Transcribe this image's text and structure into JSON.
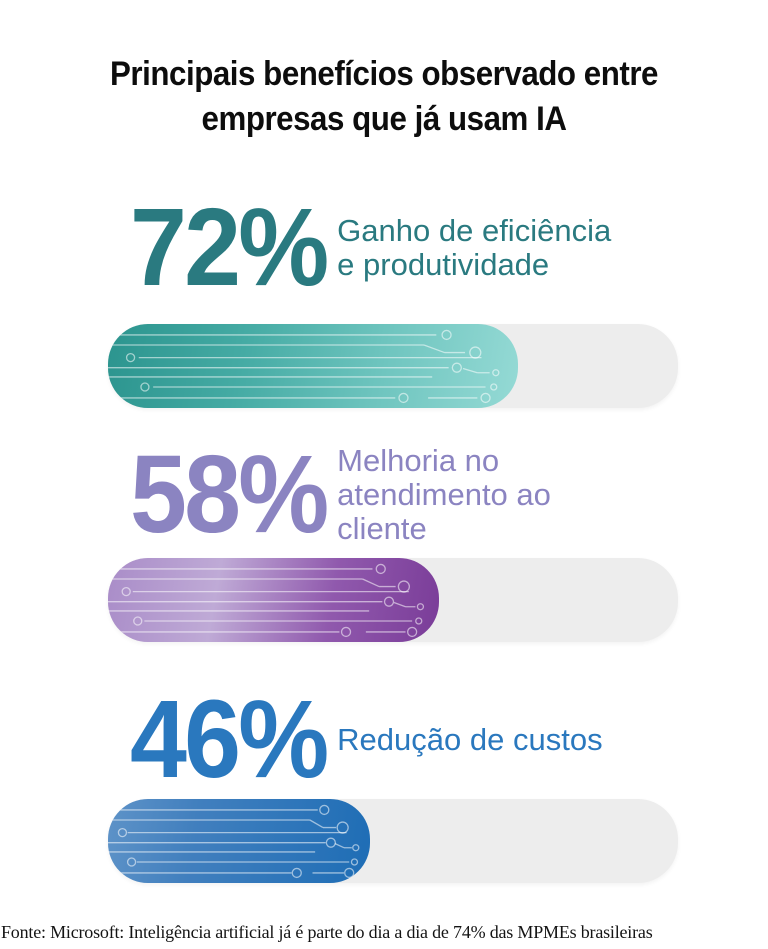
{
  "title": {
    "line1": "Principais benefícios observado entre",
    "line2": "empresas que já usam IA",
    "full": "Principais benefícios observado entre empresas que já usam IA"
  },
  "items": [
    {
      "value": "72%",
      "percent": 72,
      "label": "Ganho de eficiência e produtividade",
      "label_lines": [
        "Ganho de eficiência",
        "e produtividade"
      ],
      "color": "#2A7A80",
      "bar_gradient": [
        "#2B948E",
        "#45ABA4",
        "#6FC5BF",
        "#95DAD5"
      ]
    },
    {
      "value": "58%",
      "percent": 58,
      "label": "Melhoria no atendimento ao cliente",
      "label_lines": [
        "Melhoria no",
        "atendimento ao",
        "cliente"
      ],
      "color": "#8B84C1",
      "bar_gradient": [
        "#A98CC8",
        "#BFAAD6",
        "#9059AD",
        "#7A3C98"
      ]
    },
    {
      "value": "46%",
      "percent": 46,
      "label": "Redução de custos",
      "label_lines": [
        "Redução de custos"
      ],
      "color": "#2A78BE",
      "bar_gradient": [
        "#5E93C8",
        "#417FBE",
        "#2F76BA",
        "#1E6DB5"
      ]
    }
  ],
  "footer": {
    "text": "Fonte: Microsoft: Inteligência artificial já é parte do dia a dia de 74% das MPMEs brasileiras"
  },
  "track_color": "#EDEDED",
  "chart_data": {
    "type": "bar",
    "orientation": "horizontal",
    "title": "Principais benefícios observado entre empresas que já usam IA",
    "categories": [
      "Ganho de eficiência e produtividade",
      "Melhoria no atendimento ao cliente",
      "Redução de custos"
    ],
    "values": [
      72,
      58,
      46
    ],
    "unit": "%",
    "xlim": [
      0,
      100
    ],
    "grid": false,
    "legend": false,
    "bar_colors": [
      "#2A7A80",
      "#8B84C1",
      "#2A78BE"
    ],
    "source": "Fonte: Microsoft: Inteligência artificial já é parte do dia a dia de 74% das MPMEs brasileiras"
  }
}
